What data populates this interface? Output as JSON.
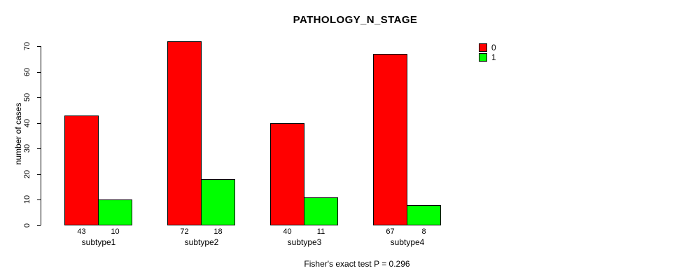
{
  "chart_data": {
    "type": "bar",
    "title": "PATHOLOGY_N_STAGE",
    "xlabel": "",
    "ylabel": "number of cases",
    "categories": [
      "subtype1",
      "subtype2",
      "subtype3",
      "subtype4"
    ],
    "series": [
      {
        "name": "0",
        "color": "#FF0000",
        "values": [
          43,
          72,
          40,
          67
        ]
      },
      {
        "name": "1",
        "color": "#00FF00",
        "values": [
          10,
          18,
          11,
          8
        ]
      }
    ],
    "bar_value_labels": [
      [
        43,
        10
      ],
      [
        72,
        18
      ],
      [
        40,
        11
      ],
      [
        67,
        8
      ]
    ],
    "ylim": [
      0,
      70
    ],
    "yticks": [
      0,
      10,
      20,
      30,
      40,
      50,
      60,
      70
    ],
    "grid": false,
    "legend_position": "top-right",
    "legend_entries": [
      {
        "label": "0",
        "color": "#FF0000"
      },
      {
        "label": "1",
        "color": "#00FF00"
      }
    ],
    "footnote": "Fisher's exact test P = 0.296",
    "axis_color": "#000000",
    "background_color": "#FFFFFF"
  }
}
